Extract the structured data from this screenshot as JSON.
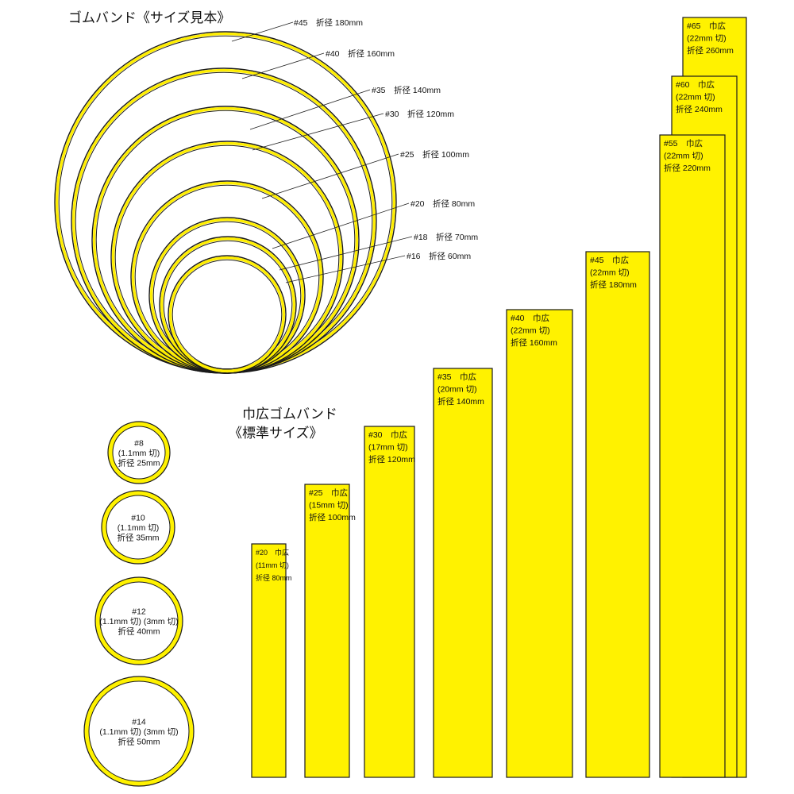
{
  "title_sample": "ゴムバンド《サイズ見本》",
  "title_wide": [
    "巾広ゴムバンド",
    "《標準サイズ》"
  ],
  "rings": [
    {
      "label": "#45　折径 180mm",
      "size": "#45",
      "fold_mm": 180
    },
    {
      "label": "#40　折径 160mm",
      "size": "#40",
      "fold_mm": 160
    },
    {
      "label": "#35　折径 140mm",
      "size": "#35",
      "fold_mm": 140
    },
    {
      "label": "#30　折径 120mm",
      "size": "#30",
      "fold_mm": 120
    },
    {
      "label": "#25　折径 100mm",
      "size": "#25",
      "fold_mm": 100
    },
    {
      "label": "#20　折径 80mm",
      "size": "#20",
      "fold_mm": 80
    },
    {
      "label": "#18　折径 70mm",
      "size": "#18",
      "fold_mm": 70
    },
    {
      "label": "#16　折径 60mm",
      "size": "#16",
      "fold_mm": 60
    }
  ],
  "small_rings": [
    {
      "size": "#8",
      "lines": [
        "#8",
        "(1.1mm 切)",
        "折径 25mm"
      ],
      "fold_mm": 25
    },
    {
      "size": "#10",
      "lines": [
        "#10",
        "(1.1mm 切)",
        "折径 35mm"
      ],
      "fold_mm": 35
    },
    {
      "size": "#12",
      "lines": [
        "#12",
        "(1.1mm 切) (3mm 切)",
        "折径 40mm"
      ],
      "fold_mm": 40
    },
    {
      "size": "#14",
      "lines": [
        "#14",
        "(1.1mm 切) (3mm 切)",
        "折径 50mm"
      ],
      "fold_mm": 50
    }
  ],
  "bands": [
    {
      "size": "#20",
      "lines": [
        "#20　巾広",
        "(11mm 切)",
        "折径 80mm"
      ],
      "fold_mm": 80
    },
    {
      "size": "#25",
      "lines": [
        "#25　巾広",
        "(15mm 切)",
        "折径 100mm"
      ],
      "fold_mm": 100
    },
    {
      "size": "#30",
      "lines": [
        "#30　巾広",
        "(17mm 切)",
        "折径 120mm"
      ],
      "fold_mm": 120
    },
    {
      "size": "#35",
      "lines": [
        "#35　巾広",
        "(20mm 切)",
        "折径 140mm"
      ],
      "fold_mm": 140
    },
    {
      "size": "#40",
      "lines": [
        "#40　巾広",
        "(22mm 切)",
        "折径 160mm"
      ],
      "fold_mm": 160
    },
    {
      "size": "#45",
      "lines": [
        "#45　巾広",
        "(22mm 切)",
        "折径 180mm"
      ],
      "fold_mm": 180
    },
    {
      "size": "#55",
      "lines": [
        "#55　巾広",
        "(22mm 切)",
        "折径 220mm"
      ],
      "fold_mm": 220
    },
    {
      "size": "#60",
      "lines": [
        "#60　巾広",
        "(22mm 切)",
        "折径 240mm"
      ],
      "fold_mm": 240
    },
    {
      "size": "#65",
      "lines": [
        "#65　巾広",
        "(22mm 切)",
        "折径 260mm"
      ],
      "fold_mm": 260
    }
  ],
  "colors": {
    "band_yellow": "#fff200",
    "ring_yellow": "#ffee00",
    "outline": "#1a1a1a"
  }
}
